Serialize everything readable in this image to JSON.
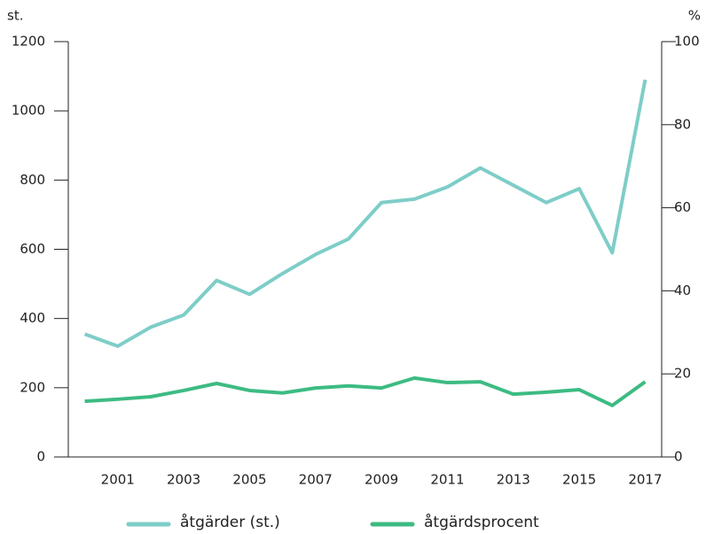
{
  "chart_data": {
    "type": "line",
    "y_unit_label": "st.",
    "y2_unit_label": "%",
    "x": [
      2000,
      2001,
      2002,
      2003,
      2004,
      2005,
      2006,
      2007,
      2008,
      2009,
      2010,
      2011,
      2012,
      2013,
      2014,
      2015,
      2016,
      2017
    ],
    "xlim": [
      1999.5,
      2017.5
    ],
    "xticks": [
      2001,
      2003,
      2005,
      2007,
      2009,
      2011,
      2013,
      2015,
      2017
    ],
    "ylim": [
      0,
      1200
    ],
    "yticks": [
      0,
      200,
      400,
      600,
      800,
      1000,
      1200
    ],
    "y2lim": [
      0,
      100
    ],
    "y2ticks": [
      0,
      20,
      40,
      60,
      80,
      100
    ],
    "grid": false,
    "legend": "bottom",
    "series": [
      {
        "name": "åtgärder (st.)",
        "color": "#7ecdc8",
        "values": [
          355,
          320,
          375,
          410,
          510,
          470,
          530,
          585,
          630,
          735,
          745,
          780,
          835,
          785,
          735,
          775,
          590,
          1090
        ]
      },
      {
        "name": "åtgärdsprocent",
        "color": "#3dbb83",
        "axis": "y2",
        "values": [
          13.4,
          13.9,
          14.5,
          16,
          17.7,
          16,
          15.4,
          16.6,
          17.1,
          16.6,
          19,
          17.9,
          18.1,
          15.1,
          15.6,
          16.2,
          12.4,
          18.1
        ]
      }
    ]
  }
}
